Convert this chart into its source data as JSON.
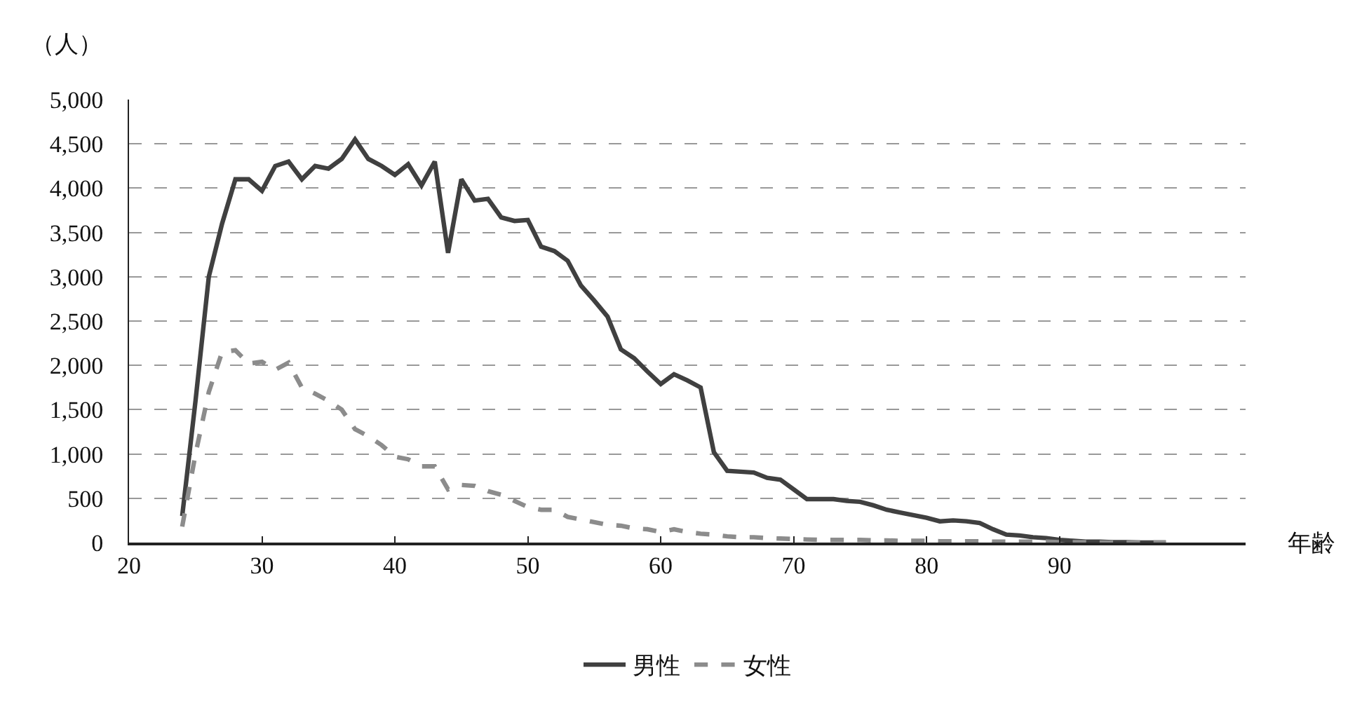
{
  "chart_data": {
    "type": "line",
    "xlabel": "年齢",
    "ylabel": "（人）",
    "x": [
      24,
      25,
      26,
      27,
      28,
      29,
      30,
      31,
      32,
      33,
      34,
      35,
      36,
      37,
      38,
      39,
      40,
      41,
      42,
      43,
      44,
      45,
      46,
      47,
      48,
      49,
      50,
      51,
      52,
      53,
      54,
      55,
      56,
      57,
      58,
      59,
      60,
      61,
      62,
      63,
      64,
      65,
      66,
      67,
      68,
      69,
      70,
      71,
      72,
      73,
      74,
      75,
      76,
      77,
      78,
      79,
      80,
      81,
      82,
      83,
      84,
      85,
      86,
      87,
      88,
      89,
      90,
      91,
      92,
      93,
      94,
      95,
      96,
      97,
      98
    ],
    "series": [
      {
        "name": "男性",
        "color": "#404040",
        "line_style": "solid",
        "values": [
          300,
          1600,
          3000,
          3600,
          4100,
          4100,
          3970,
          4250,
          4300,
          4100,
          4250,
          4220,
          4330,
          4550,
          4330,
          4250,
          4150,
          4270,
          4030,
          4300,
          3270,
          4100,
          3860,
          3880,
          3670,
          3630,
          3640,
          3340,
          3290,
          3180,
          2900,
          2730,
          2550,
          2180,
          2080,
          1930,
          1790,
          1900,
          1830,
          1750,
          1020,
          810,
          800,
          790,
          730,
          710,
          600,
          490,
          490,
          490,
          470,
          460,
          420,
          370,
          340,
          310,
          280,
          240,
          250,
          240,
          220,
          150,
          90,
          80,
          60,
          50,
          30,
          20,
          10,
          10,
          5,
          5,
          0,
          0,
          0
        ]
      },
      {
        "name": "女性",
        "color": "#8c8c8c",
        "line_style": "dashed",
        "values": [
          180,
          1000,
          1700,
          2150,
          2170,
          2020,
          2040,
          1950,
          2030,
          1750,
          1680,
          1600,
          1500,
          1280,
          1200,
          1100,
          970,
          940,
          860,
          860,
          600,
          650,
          640,
          580,
          540,
          470,
          400,
          370,
          370,
          290,
          260,
          230,
          200,
          190,
          160,
          150,
          120,
          150,
          120,
          100,
          90,
          70,
          60,
          60,
          50,
          45,
          40,
          35,
          30,
          30,
          30,
          30,
          25,
          25,
          20,
          20,
          20,
          15,
          15,
          15,
          15,
          10,
          10,
          10,
          10,
          10,
          5,
          5,
          5,
          0,
          0,
          0,
          0,
          0,
          0
        ]
      }
    ],
    "xlim": [
      20,
      104
    ],
    "xticks": [
      20,
      30,
      40,
      50,
      60,
      70,
      80,
      90
    ],
    "ylim": [
      0,
      5000
    ],
    "yticks": [
      {
        "value": 0,
        "label": "0"
      },
      {
        "value": 500,
        "label": "500"
      },
      {
        "value": 1000,
        "label": "1,000"
      },
      {
        "value": 1500,
        "label": "1,500"
      },
      {
        "value": 2000,
        "label": "2,000"
      },
      {
        "value": 2500,
        "label": "2,500"
      },
      {
        "value": 3000,
        "label": "3,000"
      },
      {
        "value": 3500,
        "label": "3,500"
      },
      {
        "value": 4000,
        "label": "4,000"
      },
      {
        "value": 4500,
        "label": "4,500"
      },
      {
        "value": 5000,
        "label": "5,000"
      }
    ],
    "grid": "y",
    "legend": "bottom",
    "marker": "none"
  }
}
